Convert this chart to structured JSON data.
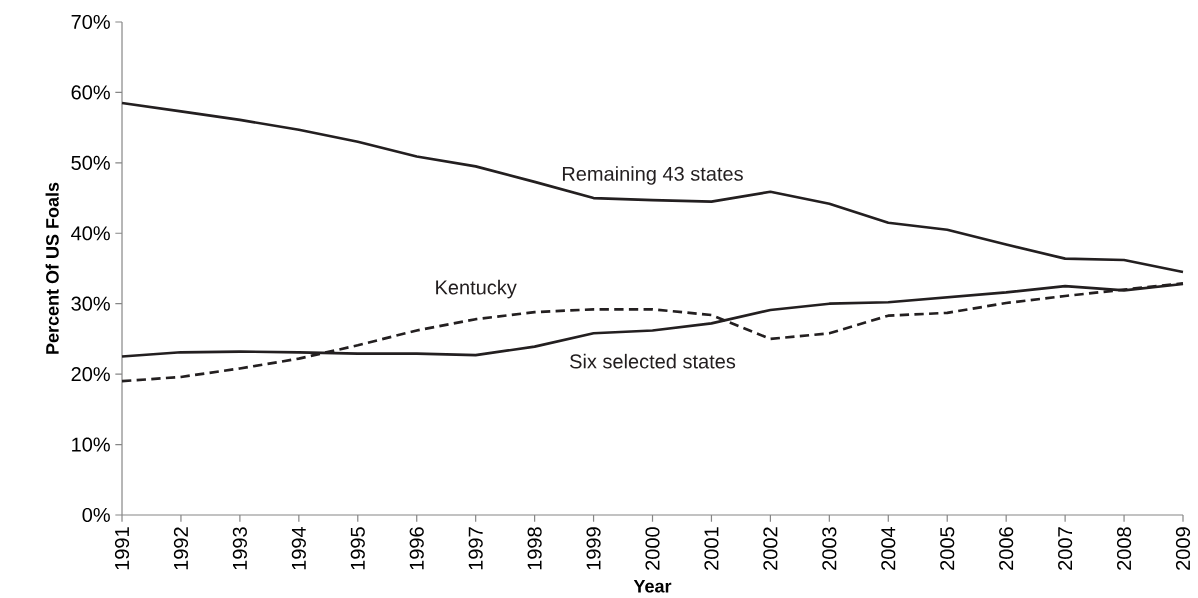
{
  "chart_data": {
    "type": "line",
    "xlabel": "Year",
    "ylabel": "Percent Of US Foals",
    "categories": [
      "1991",
      "1992",
      "1993",
      "1994",
      "1995",
      "1996",
      "1997",
      "1998",
      "1999",
      "2000",
      "2001",
      "2002",
      "2003",
      "2004",
      "2005",
      "2006",
      "2007",
      "2008",
      "2009"
    ],
    "series": [
      {
        "name": "Remaining 43 states",
        "color": "#231f20",
        "line_style": "solid",
        "values": [
          58.5,
          57.3,
          56.1,
          54.7,
          53.0,
          50.9,
          49.5,
          47.3,
          45.0,
          44.7,
          44.5,
          45.9,
          44.2,
          41.5,
          40.5,
          38.4,
          36.4,
          36.2,
          34.5
        ]
      },
      {
        "name": "Kentucky",
        "color": "#231f20",
        "line_style": "dashed",
        "values": [
          19.0,
          19.6,
          20.8,
          22.2,
          24.1,
          26.2,
          27.8,
          28.8,
          29.2,
          29.2,
          28.4,
          25.0,
          25.8,
          28.3,
          28.7,
          30.1,
          31.1,
          32.0,
          32.9
        ]
      },
      {
        "name": "Six selected states",
        "color": "#231f20",
        "line_style": "solid",
        "values": [
          22.5,
          23.1,
          23.2,
          23.1,
          22.9,
          22.9,
          22.7,
          23.9,
          25.8,
          26.2,
          27.2,
          29.1,
          30.0,
          30.2,
          30.9,
          31.6,
          32.5,
          31.9,
          32.8
        ]
      }
    ],
    "ylim": [
      0,
      70
    ],
    "yticks": [
      {
        "value": 0,
        "label": "0%"
      },
      {
        "value": 10,
        "label": "10%"
      },
      {
        "value": 20,
        "label": "20%"
      },
      {
        "value": 30,
        "label": "30%"
      },
      {
        "value": 40,
        "label": "40%"
      },
      {
        "value": 50,
        "label": "50%"
      },
      {
        "value": 60,
        "label": "60%"
      },
      {
        "value": 70,
        "label": "70%"
      }
    ],
    "grid": false,
    "legend": false,
    "marker": "none"
  }
}
